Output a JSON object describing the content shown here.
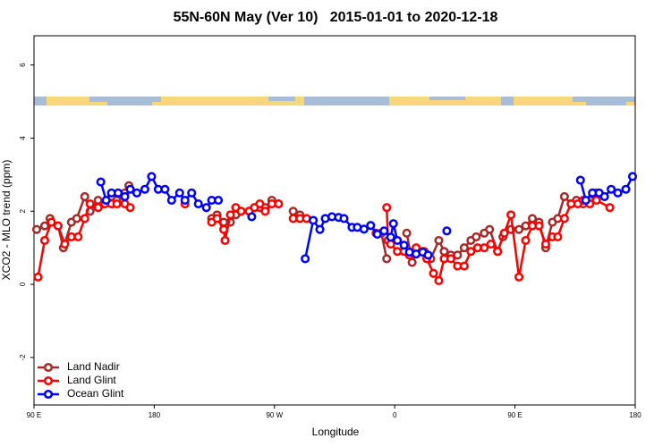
{
  "chart_data": {
    "type": "line",
    "title": "55N-60N May (Ver 10)   2015-01-01 to 2020-12-18",
    "xlabel": "Longitude",
    "ylabel": "XCO2 - MLO trend (ppm)",
    "xlim": [
      90,
      540
    ],
    "xticks": [
      {
        "value": 90,
        "label": "90 E"
      },
      180,
      {
        "value": 270,
        "label": "90 W"
      },
      {
        "value": 360,
        "label": "0"
      },
      {
        "value": 450,
        "label": "90 E"
      },
      {
        "value": 540,
        "label": "180"
      }
    ],
    "ylim": [
      -3.3,
      6.8
    ],
    "yticks": [
      -2,
      0,
      2,
      4,
      6
    ],
    "legend": "bottom-left",
    "series": [
      {
        "name": "Land Nadir",
        "color": "#a52a2a",
        "x": [
          92,
          98,
          102,
          108,
          112,
          118,
          122,
          128,
          132,
          138,
          142,
          148,
          152,
          158,
          161,
          190,
          223,
          227,
          232,
          237,
          241,
          245,
          251,
          255,
          259,
          263,
          268,
          273,
          278,
          284,
          289,
          294,
          320,
          346,
          350,
          354,
          362,
          369,
          373,
          377,
          382,
          387,
          393,
          397,
          402,
          407,
          412,
          417,
          421,
          427,
          431,
          437,
          441,
          447,
          453,
          458,
          463,
          468,
          473,
          478,
          482,
          487,
          492,
          496,
          501,
          506,
          511
        ],
        "values": [
          1.5,
          1.6,
          1.8,
          1.6,
          1.0,
          1.7,
          1.8,
          2.4,
          2.0,
          2.3,
          2.2,
          2.4,
          2.3,
          2.5,
          2.7,
          null,
          1.8,
          1.9,
          1.7,
          1.7,
          1.9,
          2.0,
          2.0,
          2.1,
          2.1,
          2.1,
          2.3,
          2.2,
          null,
          2.0,
          1.9,
          1.8,
          null,
          1.4,
          1.4,
          0.7,
          null,
          1.4,
          0.6,
          0.9,
          0.9,
          0.7,
          1.2,
          0.9,
          0.8,
          0.8,
          1.0,
          1.2,
          1.3,
          1.4,
          1.5,
          0.9,
          1.3,
          1.5,
          1.5,
          1.6,
          1.8,
          1.7,
          1.0,
          1.7,
          1.8,
          2.4,
          2.2,
          2.3,
          2.2,
          2.3,
          2.5
        ]
      },
      {
        "name": "Land Glint",
        "color": "#ff0000",
        "x": [
          93,
          98,
          103,
          108,
          113,
          118,
          123,
          128,
          132,
          138,
          143,
          148,
          152,
          158,
          162,
          185,
          203,
          210,
          223,
          227,
          232,
          233,
          237,
          241,
          245,
          251,
          255,
          259,
          263,
          268,
          273,
          278,
          284,
          289,
          294,
          330,
          354,
          355,
          357,
          362,
          367,
          371,
          376,
          381,
          384,
          389,
          393,
          397,
          402,
          407,
          412,
          417,
          422,
          427,
          432,
          437,
          442,
          447,
          453,
          458,
          463,
          468,
          473,
          478,
          482,
          487,
          492,
          497,
          501,
          506,
          511,
          521
        ],
        "values": [
          0.2,
          1.2,
          1.7,
          1.6,
          1.1,
          1.3,
          1.3,
          1.8,
          2.2,
          2.1,
          2.2,
          2.2,
          2.2,
          2.2,
          2.1,
          null,
          2.2,
          null,
          1.7,
          1.8,
          1.5,
          1.2,
          1.9,
          2.1,
          2.0,
          2.0,
          2.1,
          2.2,
          2.0,
          2.2,
          2.2,
          null,
          1.8,
          1.8,
          1.8,
          null,
          2.1,
          1.2,
          1.1,
          0.9,
          0.9,
          0.8,
          1.0,
          0.9,
          0.7,
          0.3,
          0.1,
          0.7,
          0.7,
          0.5,
          0.5,
          0.9,
          1.0,
          1.0,
          1.1,
          0.9,
          1.4,
          1.9,
          0.2,
          1.2,
          1.6,
          1.6,
          1.1,
          1.3,
          1.3,
          1.8,
          2.2,
          2.2,
          2.3,
          2.2,
          2.3,
          2.1
        ]
      },
      {
        "name": "Ocean Glint",
        "color": "#0000ff",
        "x": [
          140,
          144,
          148,
          153,
          158,
          162,
          167,
          173,
          178,
          183,
          188,
          193,
          199,
          203,
          208,
          213,
          219,
          223,
          228,
          240,
          253,
          265,
          293,
          299,
          304,
          308,
          313,
          318,
          322,
          328,
          332,
          337,
          342,
          347,
          352,
          357,
          359,
          362,
          367,
          371,
          376,
          381,
          385,
          390,
          399,
          420,
          499,
          503,
          508,
          513,
          517,
          522,
          527,
          533,
          538
        ],
        "values": [
          2.8,
          2.3,
          2.5,
          2.5,
          2.4,
          2.6,
          2.5,
          2.6,
          2.95,
          2.6,
          2.6,
          2.3,
          2.5,
          2.3,
          2.5,
          2.2,
          2.1,
          2.3,
          2.3,
          null,
          1.85,
          null,
          0.7,
          1.75,
          1.5,
          1.8,
          1.85,
          1.83,
          1.8,
          1.56,
          1.56,
          1.51,
          1.61,
          1.37,
          1.46,
          1.29,
          1.66,
          1.2,
          1.07,
          0.88,
          0.83,
          0.88,
          0.8,
          null,
          1.46,
          null,
          2.85,
          2.3,
          2.5,
          2.5,
          2.4,
          2.6,
          2.5,
          2.6,
          2.95
        ]
      }
    ]
  }
}
